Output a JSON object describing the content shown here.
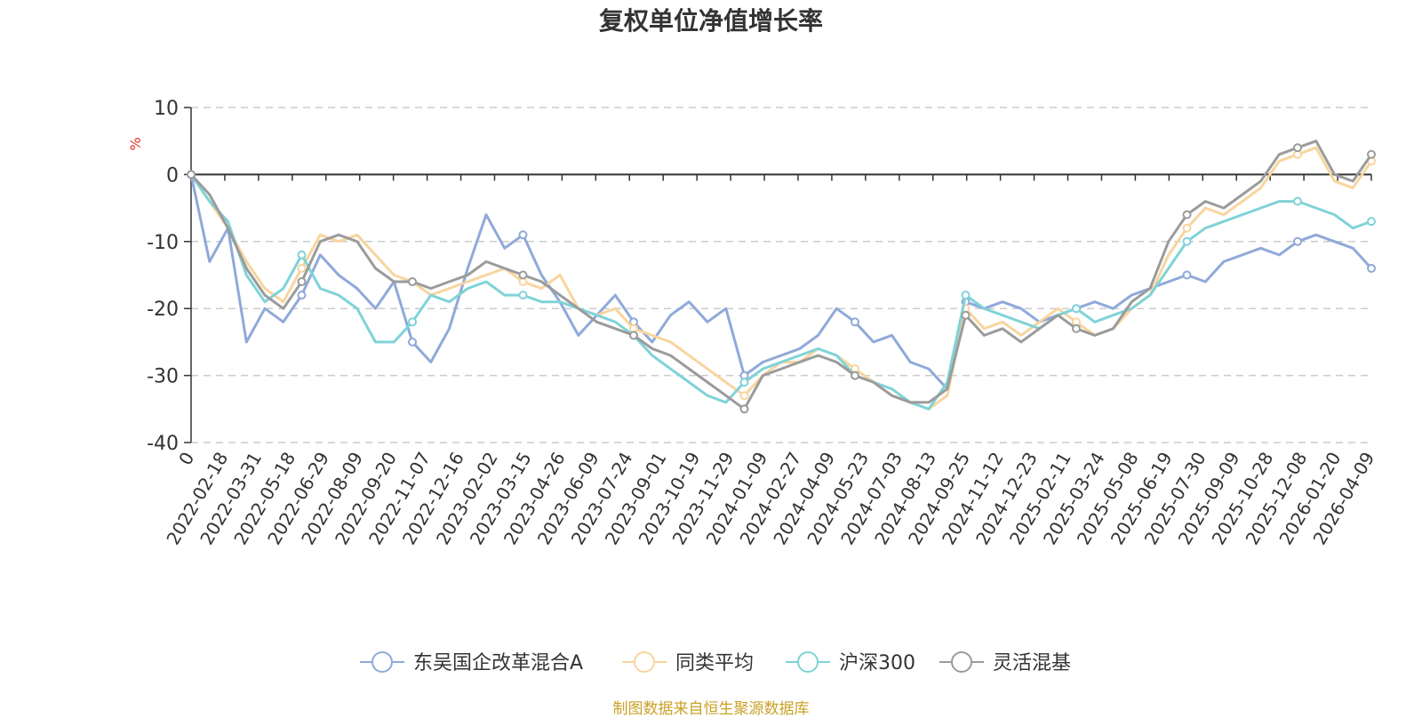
{
  "chart_data": {
    "type": "line",
    "title": "复权单位净值增长率",
    "ylabel": "%",
    "ylim": [
      -40,
      10
    ],
    "yticks": [
      10,
      0,
      -10,
      -20,
      -30,
      -40
    ],
    "x_labels": [
      "0",
      "2022-02-18",
      "2022-03-31",
      "2022-05-18",
      "2022-06-29",
      "2022-08-09",
      "2022-09-20",
      "2022-11-07",
      "2022-12-16",
      "2023-02-02",
      "2023-03-15",
      "2023-04-26",
      "2023-06-09",
      "2023-07-24",
      "2023-09-01",
      "2023-10-19",
      "2023-11-29",
      "2024-01-09",
      "2024-02-27",
      "2024-04-09",
      "2024-05-23",
      "2024-07-03",
      "2024-08-13",
      "2024-09-25",
      "2024-11-12",
      "2024-12-23",
      "2025-02-11",
      "2025-03-24",
      "2025-05-08",
      "2025-06-19",
      "2025-07-30",
      "2025-09-09",
      "2025-10-28",
      "2025-12-08",
      "2026-01-20",
      "2026-04-09"
    ],
    "series": [
      {
        "name": "东吴国企改革混合A",
        "color": "#8fa9d9",
        "values": [
          0,
          -13,
          -8,
          -25,
          -20,
          -22,
          -18,
          -12,
          -15,
          -17,
          -20,
          -16,
          -25,
          -28,
          -23,
          -14,
          -6,
          -11,
          -9,
          -15,
          -19,
          -24,
          -21,
          -18,
          -22,
          -25,
          -21,
          -19,
          -22,
          -20,
          -30,
          -28,
          -27,
          -26,
          -24,
          -20,
          -22,
          -25,
          -24,
          -28,
          -29,
          -32,
          -19,
          -20,
          -19,
          -20,
          -22,
          -21,
          -20,
          -19,
          -20,
          -18,
          -17,
          -16,
          -15,
          -16,
          -13,
          -12,
          -11,
          -12,
          -10,
          -9,
          -10,
          -11,
          -14
        ]
      },
      {
        "name": "同类平均",
        "color": "#f8d59e",
        "values": [
          0,
          -4,
          -8,
          -13,
          -17,
          -19,
          -14,
          -9,
          -10,
          -9,
          -12,
          -15,
          -16,
          -18,
          -17,
          -16,
          -15,
          -14,
          -16,
          -17,
          -15,
          -20,
          -21,
          -20,
          -23,
          -24,
          -25,
          -27,
          -29,
          -31,
          -33,
          -30,
          -28,
          -28,
          -26,
          -27,
          -29,
          -31,
          -33,
          -34,
          -35,
          -33,
          -20,
          -23,
          -22,
          -24,
          -22,
          -20,
          -22,
          -24,
          -23,
          -20,
          -18,
          -12,
          -8,
          -5,
          -6,
          -4,
          -2,
          2,
          3,
          4,
          -1,
          -2,
          2
        ]
      },
      {
        "name": "沪深300",
        "color": "#7fd3d8",
        "values": [
          0,
          -4,
          -7,
          -15,
          -19,
          -17,
          -12,
          -17,
          -18,
          -20,
          -25,
          -25,
          -22,
          -18,
          -19,
          -17,
          -16,
          -18,
          -18,
          -19,
          -19,
          -20,
          -21,
          -22,
          -24,
          -27,
          -29,
          -31,
          -33,
          -34,
          -31,
          -29,
          -28,
          -27,
          -26,
          -27,
          -30,
          -31,
          -32,
          -34,
          -35,
          -31,
          -18,
          -20,
          -21,
          -22,
          -23,
          -21,
          -20,
          -22,
          -21,
          -20,
          -18,
          -14,
          -10,
          -8,
          -7,
          -6,
          -5,
          -4,
          -4,
          -5,
          -6,
          -8,
          -7
        ]
      },
      {
        "name": "灵活混基",
        "color": "#9b9b9b",
        "values": [
          0,
          -3,
          -8,
          -14,
          -18,
          -20,
          -16,
          -10,
          -9,
          -10,
          -14,
          -16,
          -16,
          -17,
          -16,
          -15,
          -13,
          -14,
          -15,
          -16,
          -18,
          -20,
          -22,
          -23,
          -24,
          -26,
          -27,
          -29,
          -31,
          -33,
          -35,
          -30,
          -29,
          -28,
          -27,
          -28,
          -30,
          -31,
          -33,
          -34,
          -34,
          -32,
          -21,
          -24,
          -23,
          -25,
          -23,
          -21,
          -23,
          -24,
          -23,
          -19,
          -17,
          -10,
          -6,
          -4,
          -5,
          -3,
          -1,
          3,
          4,
          5,
          0,
          -1,
          3
        ]
      }
    ],
    "legend_position": "bottom-center",
    "grid": true
  },
  "footer": {
    "source_text": "制图数据来自恒生聚源数据库"
  }
}
